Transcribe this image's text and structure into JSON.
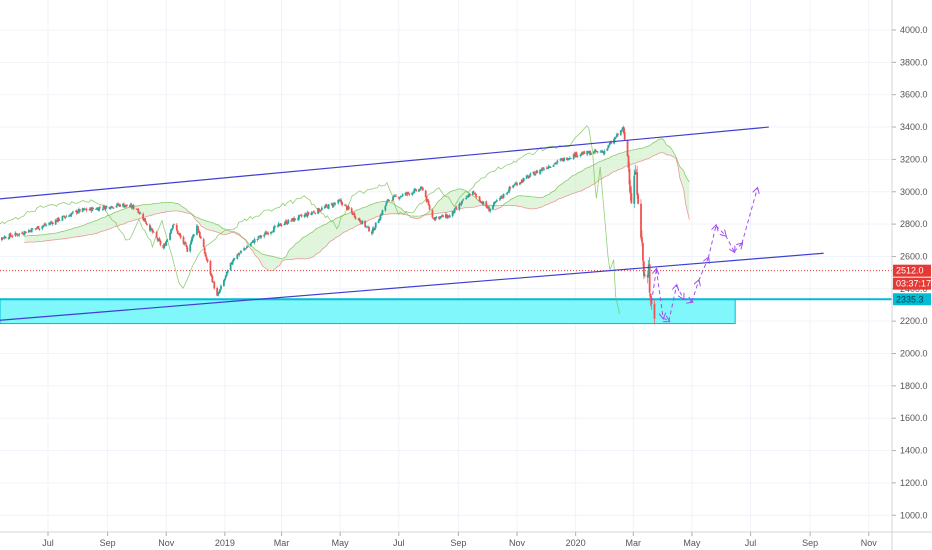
{
  "chart_data": {
    "type": "candlestick",
    "title": "",
    "xlabel": "",
    "ylabel": "",
    "ylim": [
      900,
      4150
    ],
    "y_ticks": [
      "4000.0",
      "3800.0",
      "3600.0",
      "3400.0",
      "3200.0",
      "3000.0",
      "2800.0",
      "2600.0",
      "2400.0",
      "2200.0",
      "2000.0",
      "1800.0",
      "1600.0",
      "1400.0",
      "1200.0",
      "1000.0"
    ],
    "x_ticks": [
      {
        "label": "Jul",
        "date": "2018-07-01"
      },
      {
        "label": "Sep",
        "date": "2018-09-01"
      },
      {
        "label": "Nov",
        "date": "2018-11-01"
      },
      {
        "label": "2019",
        "date": "2019-01-01"
      },
      {
        "label": "Mar",
        "date": "2019-03-01"
      },
      {
        "label": "May",
        "date": "2019-05-01"
      },
      {
        "label": "Jul",
        "date": "2019-07-01"
      },
      {
        "label": "Sep",
        "date": "2019-09-01"
      },
      {
        "label": "Nov",
        "date": "2019-11-01"
      },
      {
        "label": "2020",
        "date": "2020-01-01"
      },
      {
        "label": "Mar",
        "date": "2020-03-01"
      },
      {
        "label": "May",
        "date": "2020-05-01"
      },
      {
        "label": "Jul",
        "date": "2020-07-01"
      },
      {
        "label": "Sep",
        "date": "2020-09-01"
      },
      {
        "label": "Nov",
        "date": "2020-11-01"
      }
    ],
    "price_path": [
      [
        "2018-05-01",
        2700
      ],
      [
        "2018-06-01",
        2740
      ],
      [
        "2018-07-01",
        2800
      ],
      [
        "2018-08-01",
        2880
      ],
      [
        "2018-09-15",
        2920
      ],
      [
        "2018-10-01",
        2900
      ],
      [
        "2018-10-29",
        2650
      ],
      [
        "2018-11-08",
        2800
      ],
      [
        "2018-11-23",
        2640
      ],
      [
        "2018-12-03",
        2790
      ],
      [
        "2018-12-24",
        2350
      ],
      [
        "2019-01-10",
        2590
      ],
      [
        "2019-02-01",
        2700
      ],
      [
        "2019-03-01",
        2800
      ],
      [
        "2019-04-01",
        2870
      ],
      [
        "2019-05-01",
        2940
      ],
      [
        "2019-06-03",
        2750
      ],
      [
        "2019-06-20",
        2950
      ],
      [
        "2019-07-26",
        3020
      ],
      [
        "2019-08-05",
        2840
      ],
      [
        "2019-08-23",
        2850
      ],
      [
        "2019-09-15",
        3000
      ],
      [
        "2019-10-03",
        2890
      ],
      [
        "2019-10-28",
        3040
      ],
      [
        "2019-11-30",
        3150
      ],
      [
        "2019-12-31",
        3230
      ],
      [
        "2020-01-31",
        3250
      ],
      [
        "2020-02-19",
        3390
      ],
      [
        "2020-02-24",
        3220
      ],
      [
        "2020-02-28",
        2950
      ],
      [
        "2020-03-03",
        3130
      ],
      [
        "2020-03-06",
        2970
      ],
      [
        "2020-03-09",
        2750
      ],
      [
        "2020-03-12",
        2480
      ],
      [
        "2020-03-16",
        2450
      ],
      [
        "2020-03-17",
        2530
      ],
      [
        "2020-03-18",
        2400
      ],
      [
        "2020-03-20",
        2310
      ],
      [
        "2020-03-23",
        2240
      ]
    ],
    "upper_channel": [
      [
        "2018-05-01",
        2950
      ],
      [
        "2020-07-20",
        3400
      ]
    ],
    "lower_channel": [
      [
        "2018-05-01",
        2200
      ],
      [
        "2020-09-15",
        2620
      ]
    ],
    "support_zone": {
      "low": 2185,
      "high": 2335,
      "end": "2020-06-15"
    },
    "support_level": 2335.3,
    "projection": [
      [
        "2020-03-20",
        2320
      ],
      [
        "2020-03-25",
        2520
      ],
      [
        "2020-04-01",
        2220
      ],
      [
        "2020-04-07",
        2200
      ],
      [
        "2020-04-15",
        2420
      ],
      [
        "2020-04-22",
        2340
      ],
      [
        "2020-05-01",
        2320
      ],
      [
        "2020-05-08",
        2450
      ],
      [
        "2020-05-18",
        2590
      ],
      [
        "2020-05-26",
        2790
      ],
      [
        "2020-06-05",
        2730
      ],
      [
        "2020-06-14",
        2630
      ],
      [
        "2020-06-22",
        2680
      ],
      [
        "2020-07-08",
        3020
      ]
    ],
    "last_price": 2512.0,
    "countdown": "03:37:17",
    "price_badges": [
      "2512.0",
      "03:37:17",
      "2335.3"
    ],
    "colors": {
      "up": "#26a69a",
      "down": "#ef5350",
      "channel": "#3f3fd1",
      "zone_fill": "#7ff7fb",
      "zone_stroke": "#00bcd4",
      "projection": "#a04ef0",
      "cloud": "#c9ecc0",
      "cloud_line": "#6fbf4b",
      "cloud_red_line": "#e57373",
      "last_price": "#e53935"
    }
  }
}
